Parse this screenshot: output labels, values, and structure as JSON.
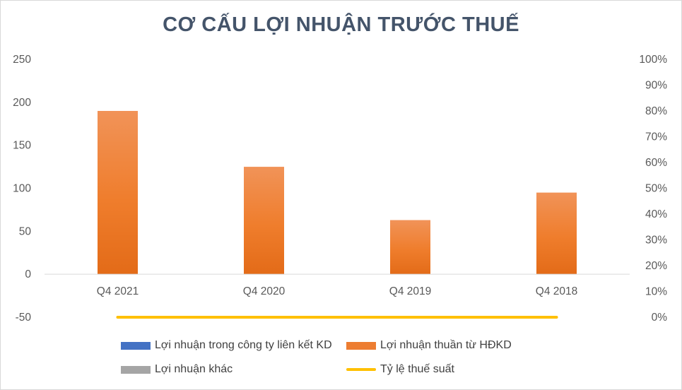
{
  "chart_data": {
    "type": "bar",
    "title": "CƠ CẤU LỢI NHUẬN TRƯỚC THUẾ",
    "categories": [
      "Q4 2021",
      "Q4 2020",
      "Q4 2019",
      "Q4 2018"
    ],
    "series": [
      {
        "name": "Lợi nhuận trong công ty liên kết KD",
        "type": "bar",
        "axis": "left",
        "color": "#4472c4",
        "values": [
          0,
          0,
          0,
          0
        ]
      },
      {
        "name": "Lợi nhuận thuần từ HĐKD",
        "type": "bar",
        "axis": "left",
        "color": "#ed7d31",
        "values": [
          190,
          125,
          63,
          95
        ]
      },
      {
        "name": "Lợi nhuận khác",
        "type": "bar",
        "axis": "left",
        "color": "#a5a5a5",
        "values": [
          0,
          0,
          0,
          0
        ]
      },
      {
        "name": "Tỷ lệ thuế suất",
        "type": "line",
        "axis": "right",
        "color": "#ffc000",
        "values": [
          0,
          0,
          0,
          0
        ]
      }
    ],
    "y_left": {
      "ylim": [
        -50,
        250
      ],
      "ticks": [
        "250",
        "200",
        "150",
        "100",
        "50",
        "0",
        "-50"
      ],
      "tick_values": [
        250,
        200,
        150,
        100,
        50,
        0,
        -50
      ]
    },
    "y_right": {
      "ylim": [
        0,
        1
      ],
      "ticks": [
        "100%",
        "90%",
        "80%",
        "70%",
        "60%",
        "50%",
        "40%",
        "30%",
        "20%",
        "10%",
        "0%"
      ],
      "tick_values": [
        1,
        0.9,
        0.8,
        0.7,
        0.6,
        0.5,
        0.4,
        0.3,
        0.2,
        0.1,
        0
      ]
    },
    "grid": false,
    "legend_position": "bottom"
  }
}
